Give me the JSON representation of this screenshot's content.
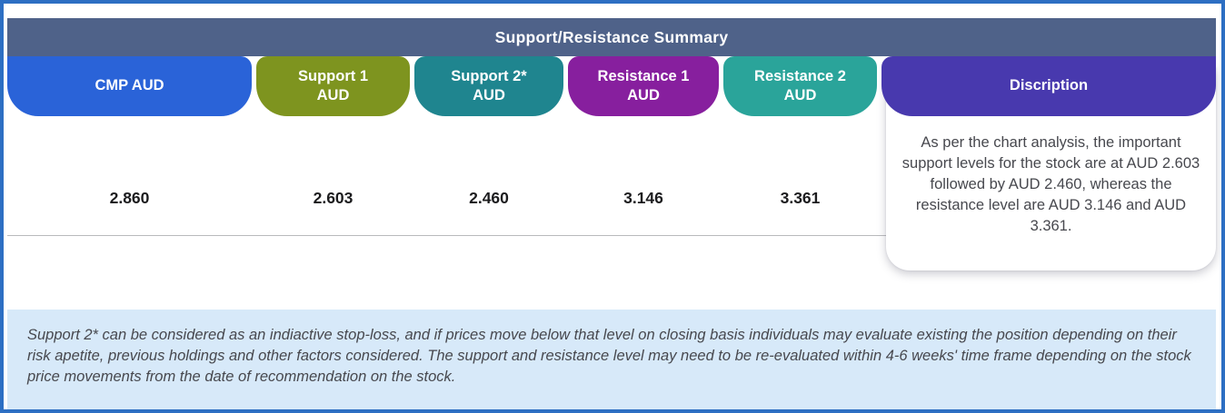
{
  "header": {
    "title": "Support/Resistance Summary"
  },
  "theme": {
    "border_color": "#2d6fc3",
    "header_bg": "#4f6289",
    "footer_bg": "#d7e9f9",
    "divider_color": "#b9babc",
    "value_text_color": "#1c1c1e",
    "body_text_color": "#47484e"
  },
  "columns": [
    {
      "label": "CMP AUD",
      "label2": "",
      "value": "2.860",
      "color": "#2a63d8"
    },
    {
      "label": "Support 1",
      "label2": "AUD",
      "value": "2.603",
      "color": "#7e941f"
    },
    {
      "label": "Support 2*",
      "label2": "AUD",
      "value": "2.460",
      "color": "#1f858f"
    },
    {
      "label": "Resistance 1",
      "label2": "AUD",
      "value": "3.146",
      "color": "#871f9e"
    },
    {
      "label": "Resistance 2",
      "label2": "AUD",
      "value": "3.361",
      "color": "#2aa49a"
    }
  ],
  "description": {
    "header": "Discription",
    "header_color": "#4839ae",
    "body": "As per the chart analysis, the important support levels for the stock are at AUD 2.603 followed by AUD 2.460, whereas the resistance level are AUD 3.146 and AUD 3.361."
  },
  "footnote": "Support 2* can be considered as an indiactive stop-loss, and if prices move below that level on closing basis individuals may evaluate existing the position depending on their risk apetite, previous holdings and other factors considered. The support and resistance level may need to be re-evaluated within 4-6 weeks' time frame depending on the stock price movements from  the date of recommendation on the stock.",
  "chart_data": {
    "type": "table",
    "title": "Support/Resistance Summary",
    "columns": [
      "CMP AUD",
      "Support 1 AUD",
      "Support 2* AUD",
      "Resistance 1 AUD",
      "Resistance 2 AUD",
      "Discription"
    ],
    "rows": [
      [
        "2.860",
        "2.603",
        "2.460",
        "3.146",
        "3.361",
        "As per the chart analysis, the important support levels for the stock are at AUD 2.603 followed by AUD 2.460, whereas the resistance level are AUD 3.146 and AUD 3.361."
      ]
    ],
    "units": "AUD",
    "values": {
      "cmp": 2.86,
      "support_1": 2.603,
      "support_2": 2.46,
      "resistance_1": 3.146,
      "resistance_2": 3.361
    }
  }
}
